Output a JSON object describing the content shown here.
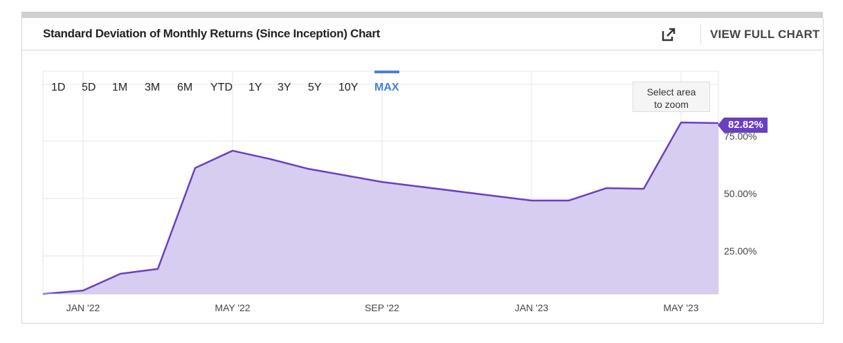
{
  "header": {
    "title": "Standard Deviation of Monthly Returns (Since Inception) Chart",
    "view_full": "VIEW FULL CHART"
  },
  "ranges": [
    "1D",
    "5D",
    "1M",
    "3M",
    "6M",
    "YTD",
    "1Y",
    "3Y",
    "5Y",
    "10Y",
    "MAX"
  ],
  "active_range": "MAX",
  "zoom_tip": [
    "Select area",
    "to zoom"
  ],
  "last_value_label": "82.82%",
  "colors": {
    "line": "#6a3fc2",
    "fill": "#d7cdf0",
    "accent": "#4a7fd6"
  },
  "chart_data": {
    "type": "area",
    "title": "Standard Deviation of Monthly Returns (Since Inception) Chart",
    "x_unit": "months since Jan 2022",
    "x": [
      -1,
      0,
      1,
      2,
      3,
      4,
      5,
      6,
      8,
      12,
      13,
      14,
      15,
      16,
      17
    ],
    "values": [
      8.4,
      9.9,
      17.2,
      19.3,
      63.3,
      70.8,
      67.2,
      63.0,
      57.2,
      49.1,
      49.1,
      54.5,
      54.2,
      83.1,
      82.82
    ],
    "ylim": [
      8.4,
      100
    ],
    "yticks": [
      25,
      50,
      75
    ],
    "ytick_labels": [
      "25.00%",
      "50.00%",
      "75.00%"
    ],
    "xticks": [
      0,
      4,
      8,
      12,
      16
    ],
    "xtick_labels": [
      "JAN '22",
      "MAY '22",
      "SEP '22",
      "JAN '23",
      "MAY '23"
    ],
    "grid": true
  }
}
